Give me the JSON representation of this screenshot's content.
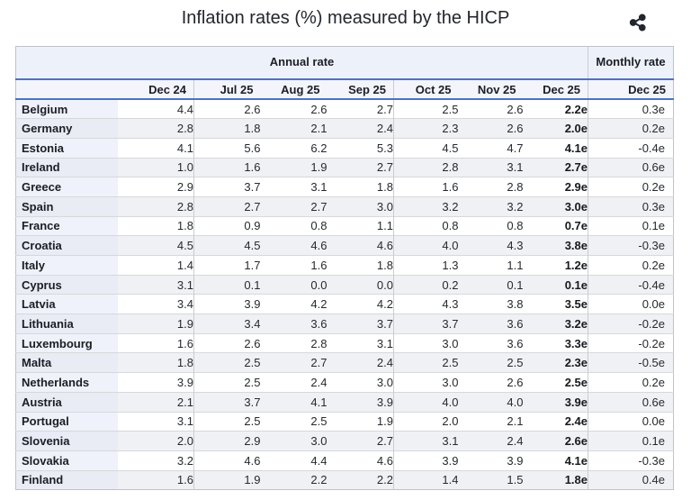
{
  "header": {
    "title": "Inflation rates (%) measured by the HICP"
  },
  "icons": {
    "share": "share-icon"
  },
  "colors": {
    "accent_rule_blue": "#4d72c5",
    "group_header_bg": "#edf1fa",
    "month_header_bg": "#f3f5fb",
    "country_col_bg": "#eff2fa",
    "stripe_bg": "#f0f1f4",
    "icon_color": "#22262e"
  },
  "chart_data": {
    "type": "table",
    "title": "Inflation rates (%) measured by the HICP",
    "column_groups": [
      {
        "label": "Annual rate",
        "span": 7
      },
      {
        "label": "Monthly rate",
        "span": 1
      }
    ],
    "columns": [
      "Dec 24",
      "Jul 25",
      "Aug 25",
      "Sep 25",
      "Oct 25",
      "Nov 25",
      "Dec 25",
      "Dec 25"
    ],
    "rows": [
      {
        "country": "Belgium",
        "annual": [
          "4.4",
          "2.6",
          "2.6",
          "2.7",
          "2.5",
          "2.6",
          "2.2e"
        ],
        "monthly": "0.3e"
      },
      {
        "country": "Germany",
        "annual": [
          "2.8",
          "1.8",
          "2.1",
          "2.4",
          "2.3",
          "2.6",
          "2.0e"
        ],
        "monthly": "0.2e"
      },
      {
        "country": "Estonia",
        "annual": [
          "4.1",
          "5.6",
          "6.2",
          "5.3",
          "4.5",
          "4.7",
          "4.1e"
        ],
        "monthly": "-0.4e"
      },
      {
        "country": "Ireland",
        "annual": [
          "1.0",
          "1.6",
          "1.9",
          "2.7",
          "2.8",
          "3.1",
          "2.7e"
        ],
        "monthly": "0.6e"
      },
      {
        "country": "Greece",
        "annual": [
          "2.9",
          "3.7",
          "3.1",
          "1.8",
          "1.6",
          "2.8",
          "2.9e"
        ],
        "monthly": "0.2e"
      },
      {
        "country": "Spain",
        "annual": [
          "2.8",
          "2.7",
          "2.7",
          "3.0",
          "3.2",
          "3.2",
          "3.0e"
        ],
        "monthly": "0.3e"
      },
      {
        "country": "France",
        "annual": [
          "1.8",
          "0.9",
          "0.8",
          "1.1",
          "0.8",
          "0.8",
          "0.7e"
        ],
        "monthly": "0.1e"
      },
      {
        "country": "Croatia",
        "annual": [
          "4.5",
          "4.5",
          "4.6",
          "4.6",
          "4.0",
          "4.3",
          "3.8e"
        ],
        "monthly": "-0.3e"
      },
      {
        "country": "Italy",
        "annual": [
          "1.4",
          "1.7",
          "1.6",
          "1.8",
          "1.3",
          "1.1",
          "1.2e"
        ],
        "monthly": "0.2e"
      },
      {
        "country": "Cyprus",
        "annual": [
          "3.1",
          "0.1",
          "0.0",
          "0.0",
          "0.2",
          "0.1",
          "0.1e"
        ],
        "monthly": "-0.4e"
      },
      {
        "country": "Latvia",
        "annual": [
          "3.4",
          "3.9",
          "4.2",
          "4.2",
          "4.3",
          "3.8",
          "3.5e"
        ],
        "monthly": "0.0e"
      },
      {
        "country": "Lithuania",
        "annual": [
          "1.9",
          "3.4",
          "3.6",
          "3.7",
          "3.7",
          "3.6",
          "3.2e"
        ],
        "monthly": "-0.2e"
      },
      {
        "country": "Luxembourg",
        "annual": [
          "1.6",
          "2.6",
          "2.8",
          "3.1",
          "3.0",
          "3.6",
          "3.3e"
        ],
        "monthly": "-0.2e"
      },
      {
        "country": "Malta",
        "annual": [
          "1.8",
          "2.5",
          "2.7",
          "2.4",
          "2.5",
          "2.5",
          "2.3e"
        ],
        "monthly": "-0.5e"
      },
      {
        "country": "Netherlands",
        "annual": [
          "3.9",
          "2.5",
          "2.4",
          "3.0",
          "3.0",
          "2.6",
          "2.5e"
        ],
        "monthly": "0.2e"
      },
      {
        "country": "Austria",
        "annual": [
          "2.1",
          "3.7",
          "4.1",
          "3.9",
          "4.0",
          "4.0",
          "3.9e"
        ],
        "monthly": "0.6e"
      },
      {
        "country": "Portugal",
        "annual": [
          "3.1",
          "2.5",
          "2.5",
          "1.9",
          "2.0",
          "2.1",
          "2.4e"
        ],
        "monthly": "0.0e"
      },
      {
        "country": "Slovenia",
        "annual": [
          "2.0",
          "2.9",
          "3.0",
          "2.7",
          "3.1",
          "2.4",
          "2.6e"
        ],
        "monthly": "0.1e"
      },
      {
        "country": "Slovakia",
        "annual": [
          "3.2",
          "4.6",
          "4.4",
          "4.6",
          "3.9",
          "3.9",
          "4.1e"
        ],
        "monthly": "-0.3e"
      },
      {
        "country": "Finland",
        "annual": [
          "1.6",
          "1.9",
          "2.2",
          "2.2",
          "1.4",
          "1.5",
          "1.8e"
        ],
        "monthly": "0.4e"
      }
    ]
  }
}
